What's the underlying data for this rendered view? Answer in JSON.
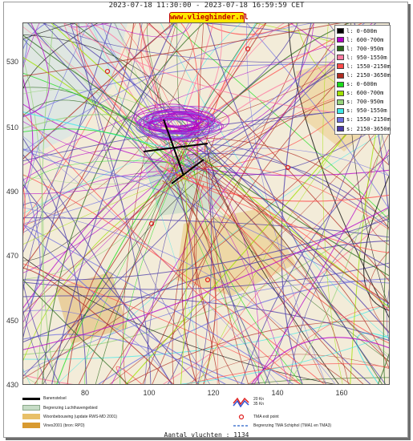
{
  "header": {
    "title": "2023-07-18 11:30:00 - 2023-07-18 16:59:59 CET",
    "link": "www.vlieghinder.nl"
  },
  "axes": {
    "y_ticks": [
      "530",
      "510",
      "490",
      "470",
      "450",
      "430"
    ],
    "x_ticks": [
      "80",
      "100",
      "120",
      "140",
      "160"
    ]
  },
  "legend": {
    "items": [
      {
        "label": "l: 0-600m",
        "color": "#000000"
      },
      {
        "label": "l: 600-700m",
        "color": "#b400c8"
      },
      {
        "label": "l: 700-950m",
        "color": "#2a6a1a"
      },
      {
        "label": "l: 950-1550m",
        "color": "#ff7aa0"
      },
      {
        "label": "l: 1550-2150m",
        "color": "#ff4a4a"
      },
      {
        "label": "l: 2150-3650m",
        "color": "#b02a20"
      },
      {
        "label": "s: 0-600m",
        "color": "#1adc1a"
      },
      {
        "label": "s: 600-700m",
        "color": "#a0e000"
      },
      {
        "label": "s: 700-950m",
        "color": "#96d27a"
      },
      {
        "label": "s: 950-1550m",
        "color": "#40e8e8"
      },
      {
        "label": "s: 1550-2150m",
        "color": "#6e6ee0"
      },
      {
        "label": "s: 2150-3650m",
        "color": "#4a3aa8"
      }
    ]
  },
  "bottom_legend": {
    "runway": "Banenstelsel",
    "airport_area": "Begrenzing Luchthavengebied",
    "housing": "Woonbebouwing (update RWS-MD 2001)",
    "vinex": "Vinex2001 (bron: RPD)",
    "knots20": "20 Kn",
    "knots35": "35 Kn",
    "tma_exit": "TMA exit point",
    "tma_boundary": "Begrenzing TMA Schiphol  (TMA1 en TMA3)"
  },
  "footer": {
    "counter": "Aantal vluchten : 1134"
  },
  "colors": {
    "runway": "#000000",
    "airport_area": "#c6dcc6",
    "housing": "#e8c068",
    "vinex": "#d89a30",
    "tma_exit": "#e02020",
    "tma_boundary": "#4a7ad0"
  }
}
